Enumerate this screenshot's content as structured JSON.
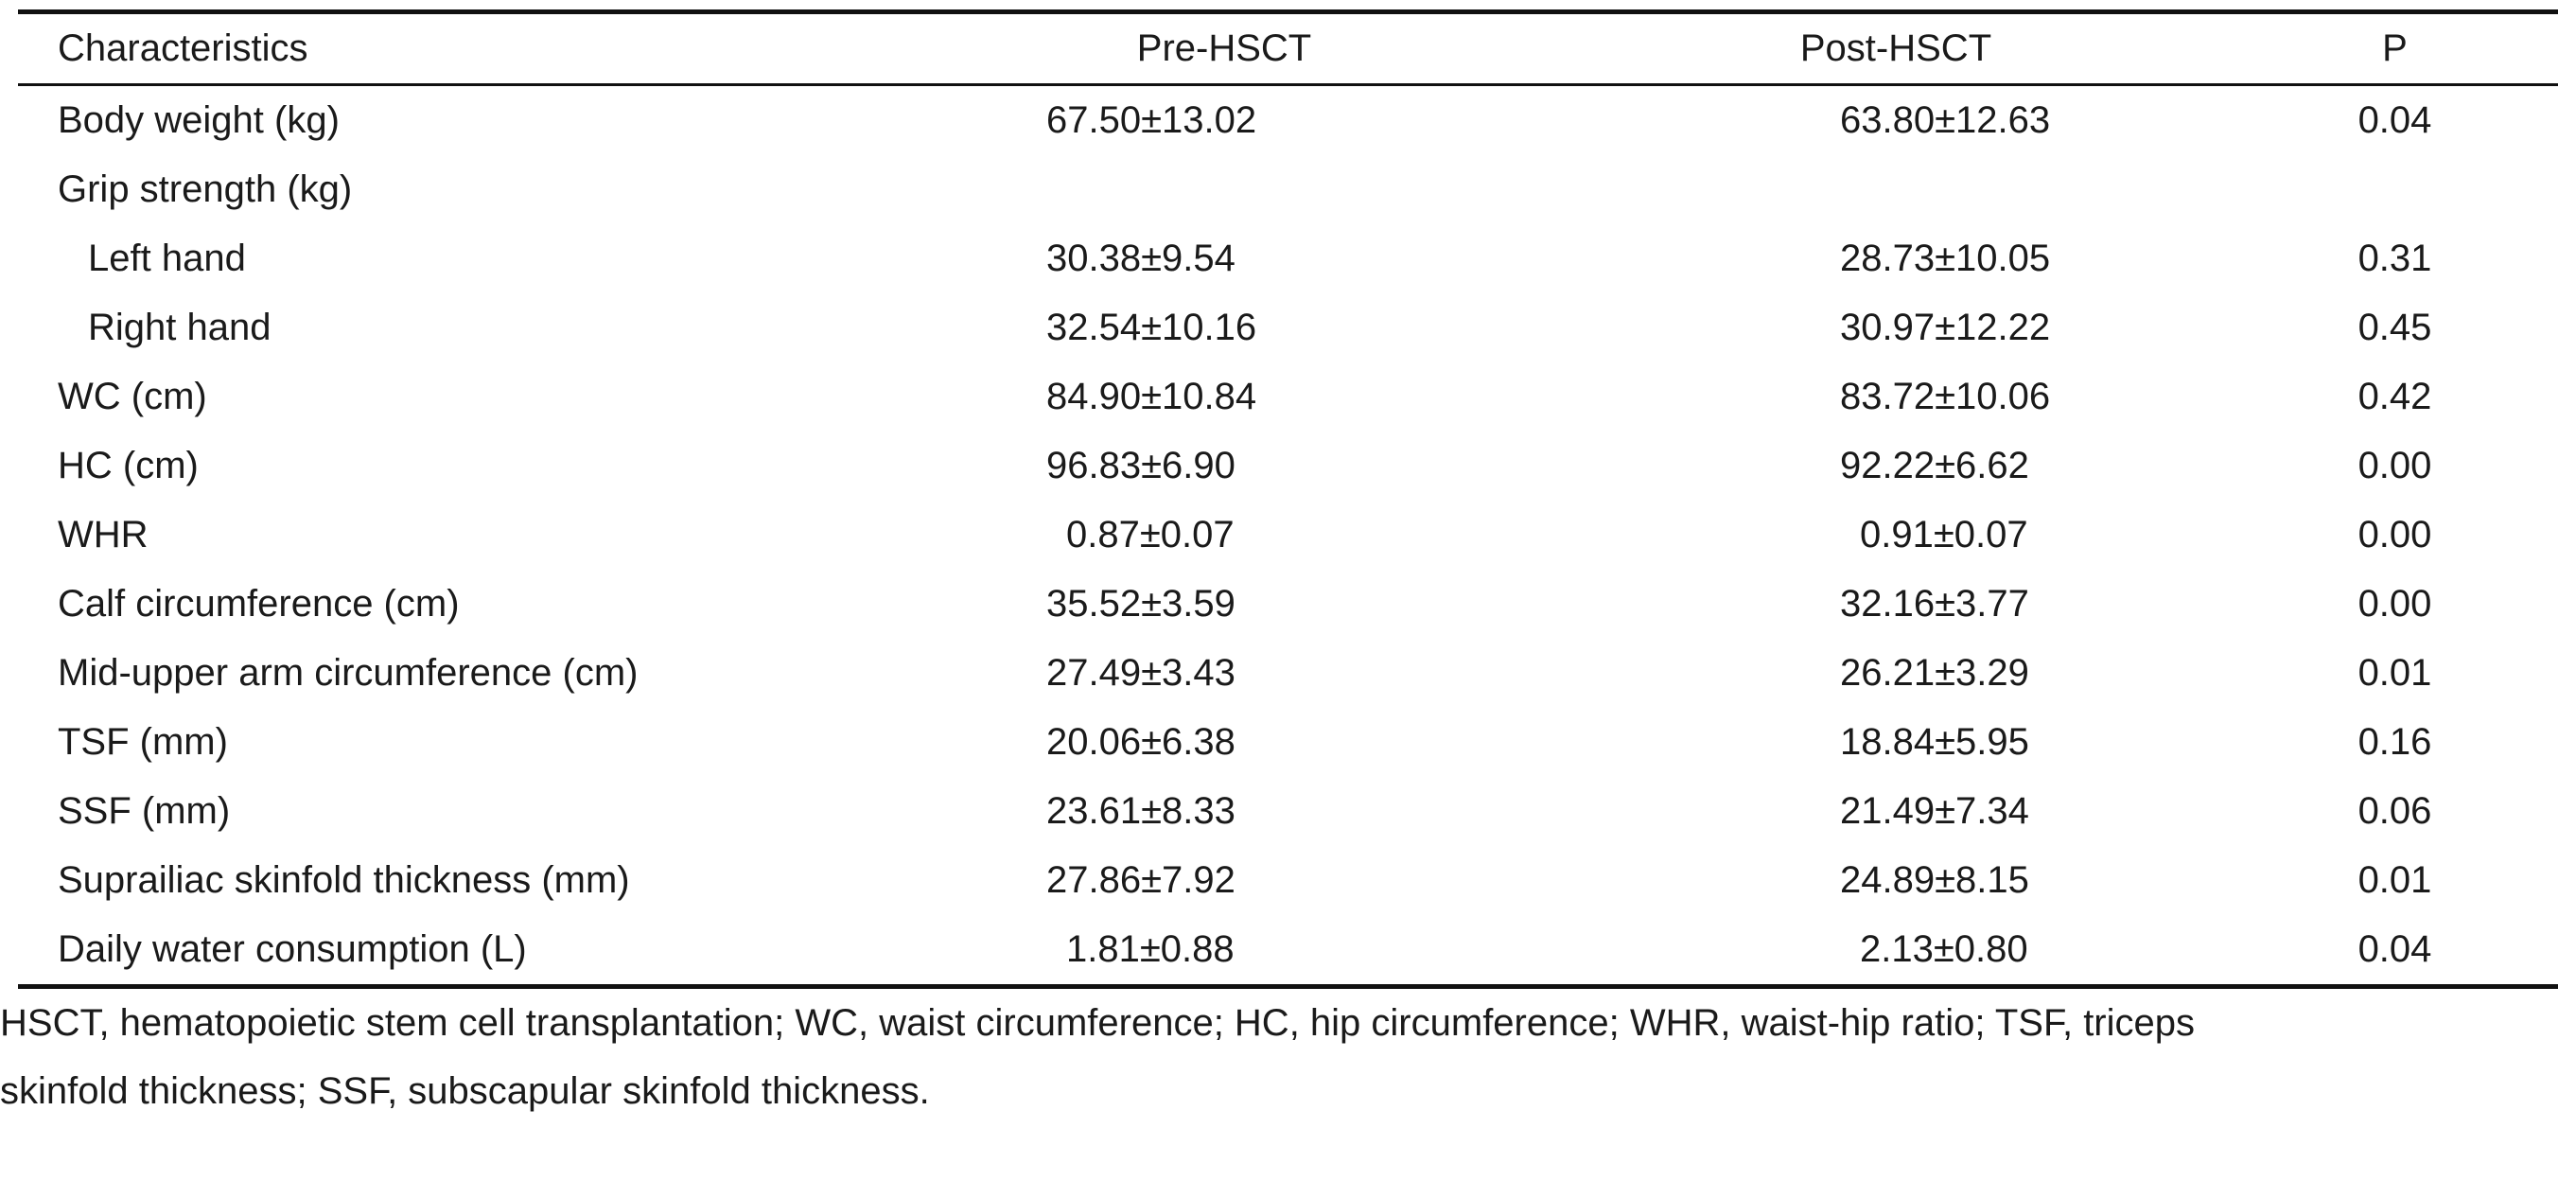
{
  "table": {
    "headers": [
      "Characteristics",
      "Pre-HSCT",
      "Post-HSCT",
      "P"
    ],
    "rows": [
      {
        "label": "Body weight (kg)",
        "pre": "67.50±13.02",
        "post": "63.80±12.63",
        "p": "0.04",
        "indent": false
      },
      {
        "label": "Grip strength (kg)",
        "pre": "",
        "post": "",
        "p": "",
        "indent": false
      },
      {
        "label": "Left hand",
        "pre": "30.38±9.54",
        "post": "28.73±10.05",
        "p": "0.31",
        "indent": true
      },
      {
        "label": "Right hand",
        "pre": "32.54±10.16",
        "post": "30.97±12.22",
        "p": "0.45",
        "indent": true
      },
      {
        "label": "WC (cm)",
        "pre": "84.90±10.84",
        "post": "83.72±10.06",
        "p": "0.42",
        "indent": false
      },
      {
        "label": "HC (cm)",
        "pre": "96.83±6.90",
        "post": "92.22±6.62",
        "p": "0.00",
        "indent": false
      },
      {
        "label": "WHR",
        "pre": "0.87±0.07",
        "post": "0.91±0.07",
        "p": "0.00",
        "indent": false
      },
      {
        "label": "Calf circumference (cm)",
        "pre": "35.52±3.59",
        "post": "32.16±3.77",
        "p": "0.00",
        "indent": false
      },
      {
        "label": "Mid-upper arm circumference (cm)",
        "pre": "27.49±3.43",
        "post": "26.21±3.29",
        "p": "0.01",
        "indent": false
      },
      {
        "label": "TSF (mm)",
        "pre": "20.06±6.38",
        "post": "18.84±5.95",
        "p": "0.16",
        "indent": false
      },
      {
        "label": "SSF (mm)",
        "pre": "23.61±8.33",
        "post": "21.49±7.34",
        "p": "0.06",
        "indent": false
      },
      {
        "label": "Suprailiac skinfold thickness (mm)",
        "pre": "27.86±7.92",
        "post": "24.89±8.15",
        "p": "0.01",
        "indent": false
      },
      {
        "label": "Daily water consumption (L)",
        "pre": "1.81±0.88",
        "post": "2.13±0.80",
        "p": "0.04",
        "indent": false
      }
    ]
  },
  "footnote": {
    "line1": "HSCT, hematopoietic stem cell transplantation; WC, waist circumference; HC, hip circumference; WHR, waist-hip ratio; TSF, triceps",
    "line2": "skinfold thickness; SSF, subscapular skinfold thickness."
  }
}
